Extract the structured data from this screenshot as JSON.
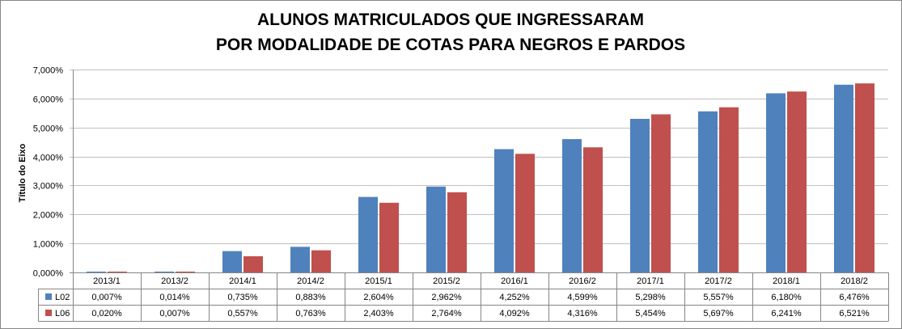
{
  "chart_data": {
    "type": "bar",
    "title_lines": [
      "ALUNOS MATRICULADOS QUE INGRESSARAM",
      "POR MODALIDADE DE COTAS PARA NEGROS E PARDOS"
    ],
    "ylabel": "Título do Eixo",
    "xlabel": "",
    "ylim": [
      0,
      7
    ],
    "y_ticks": [
      "0,000%",
      "1,000%",
      "2,000%",
      "3,000%",
      "4,000%",
      "5,000%",
      "6,000%",
      "7,000%"
    ],
    "grid": true,
    "legend_placement": "data-table",
    "categories": [
      "2013/1",
      "2013/2",
      "2014/1",
      "2014/2",
      "2015/1",
      "2015/2",
      "2016/1",
      "2016/2",
      "2017/1",
      "2017/2",
      "2018/1",
      "2018/2"
    ],
    "series": [
      {
        "name": "L02",
        "color": "#4f81bd",
        "values": [
          0.007,
          0.014,
          0.735,
          0.883,
          2.604,
          2.962,
          4.252,
          4.599,
          5.298,
          5.557,
          6.18,
          6.476
        ],
        "labels": [
          "0,007%",
          "0,014%",
          "0,735%",
          "0,883%",
          "2,604%",
          "2,962%",
          "4,252%",
          "4,599%",
          "5,298%",
          "5,557%",
          "6,180%",
          "6,476%"
        ]
      },
      {
        "name": "L06",
        "color": "#c0504d",
        "values": [
          0.02,
          0.007,
          0.557,
          0.763,
          2.403,
          2.764,
          4.092,
          4.316,
          5.454,
          5.697,
          6.241,
          6.521
        ],
        "labels": [
          "0,020%",
          "0,007%",
          "0,557%",
          "0,763%",
          "2,403%",
          "2,764%",
          "4,092%",
          "4,316%",
          "5,454%",
          "5,697%",
          "6,241%",
          "6,521%"
        ]
      }
    ]
  }
}
